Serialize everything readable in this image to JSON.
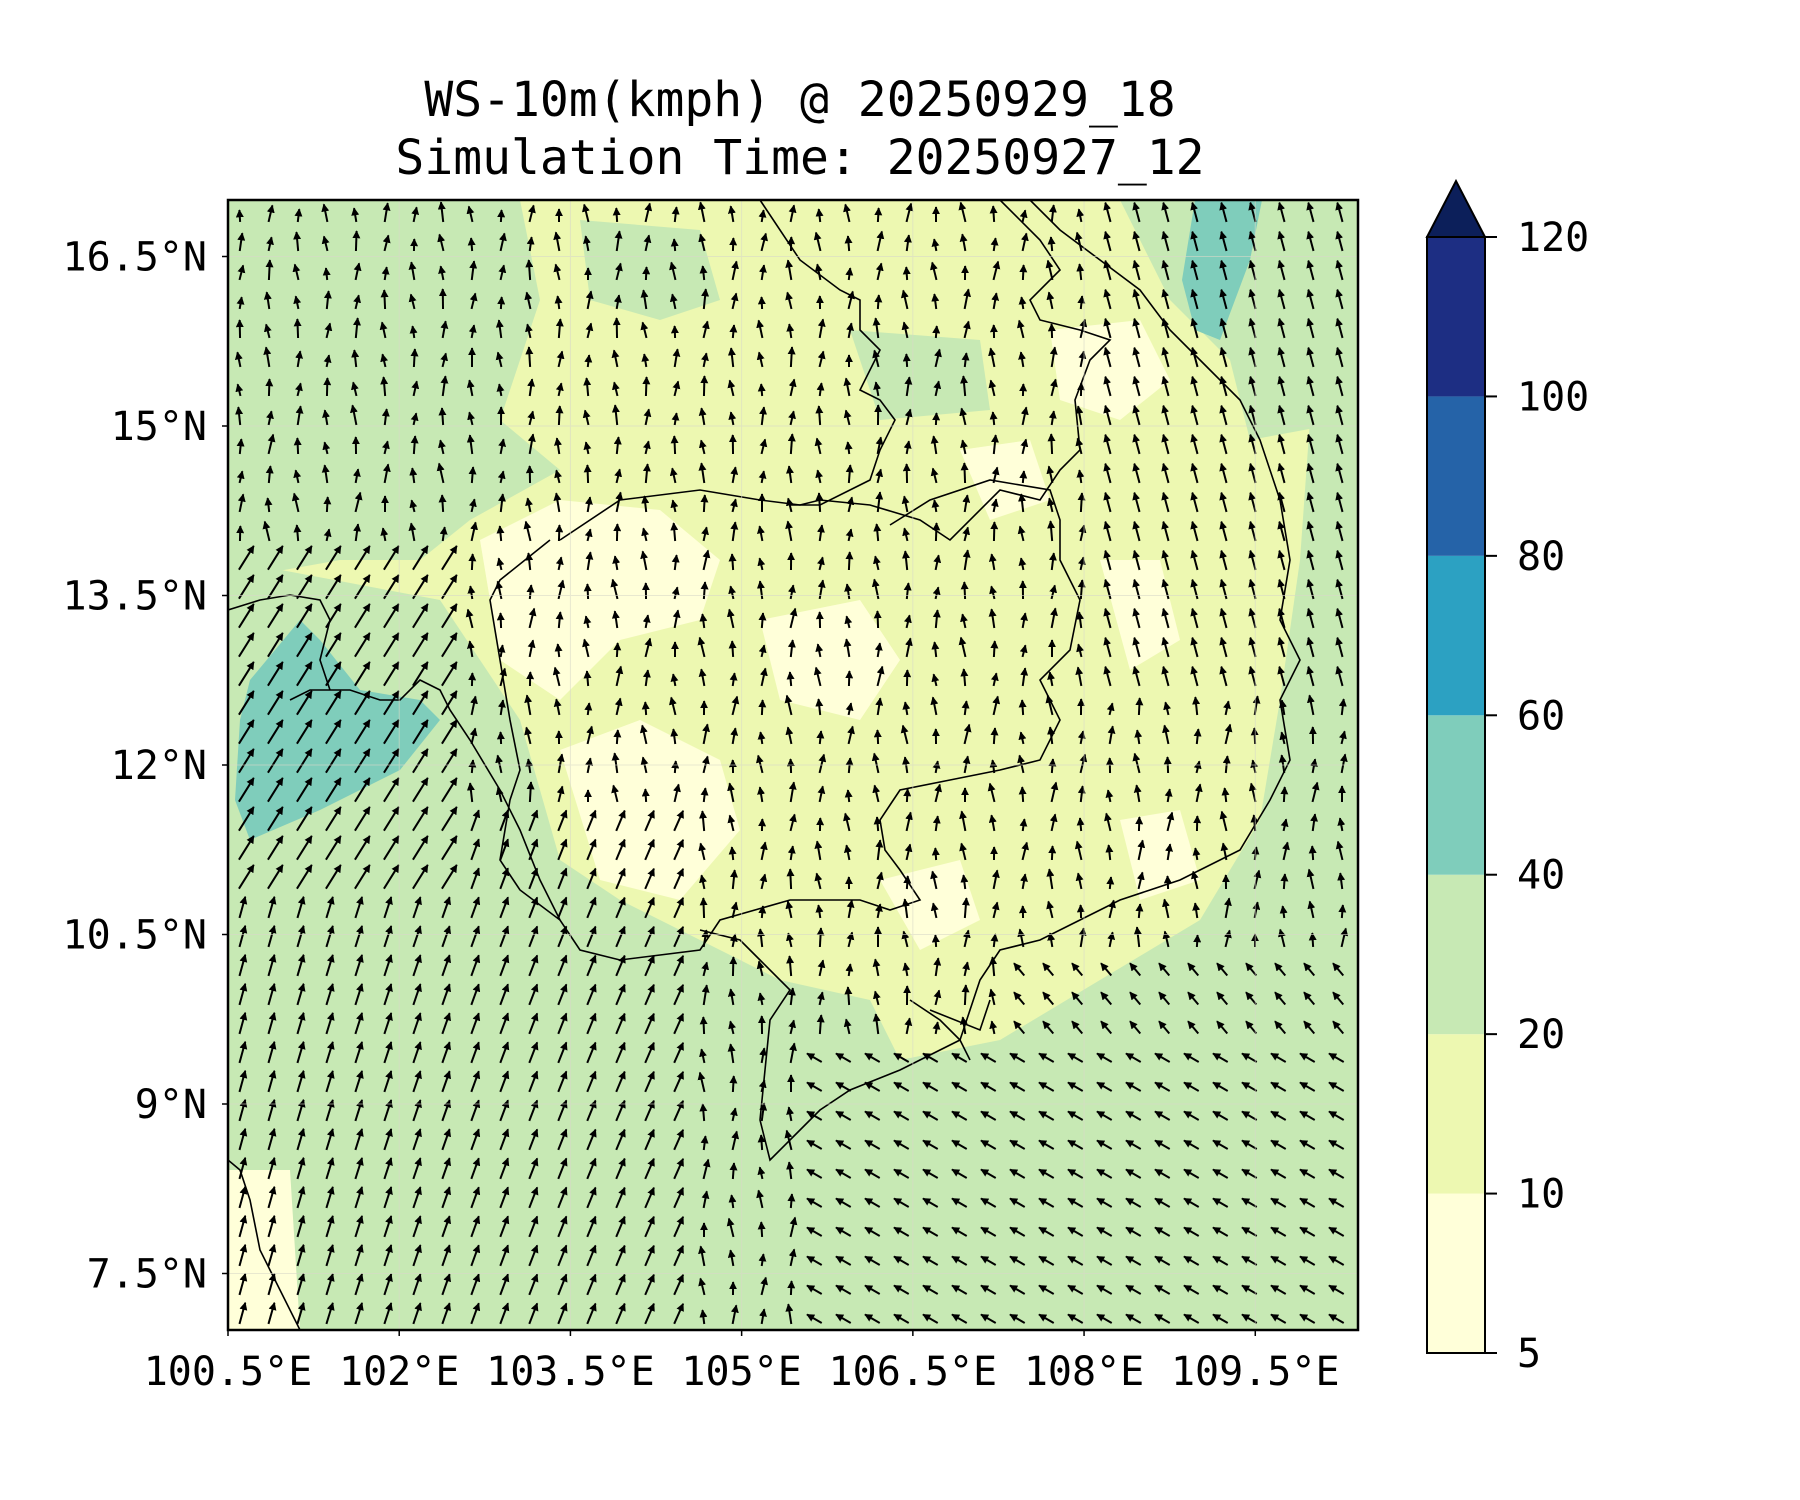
{
  "title": {
    "line1": "WS-10m(kmph) @ 20250929_18",
    "line2": "Simulation Time: 20250927_12"
  },
  "map": {
    "lon_ticks": [
      "100.5°E",
      "102°E",
      "103.5°E",
      "105°E",
      "106.5°E",
      "108°E",
      "109.5°E"
    ],
    "lat_ticks": [
      "16.5°N",
      "15°N",
      "13.5°N",
      "12°N",
      "10.5°N",
      "9°N",
      "7.5°N"
    ],
    "lon_range": [
      100.5,
      110.4
    ],
    "lat_range": [
      7.0,
      17.0
    ],
    "background_color": "#edf8b1"
  },
  "colorbar": {
    "tick_labels": [
      "120",
      "100",
      "80",
      "60",
      "40",
      "20",
      "10",
      "5"
    ],
    "levels": [
      5,
      10,
      20,
      40,
      60,
      80,
      100,
      120
    ],
    "colors": [
      "#ffffd9",
      "#edf8b1",
      "#c7e9b4",
      "#7fcdbb",
      "#2ca1c2",
      "#2563a8",
      "#1d2e83"
    ],
    "extend_color": "#0c1f5a",
    "extend": "max"
  },
  "wind_field": {
    "unit": "kmph",
    "dominant_direction": "north",
    "strong_region_direction": "northeast"
  }
}
